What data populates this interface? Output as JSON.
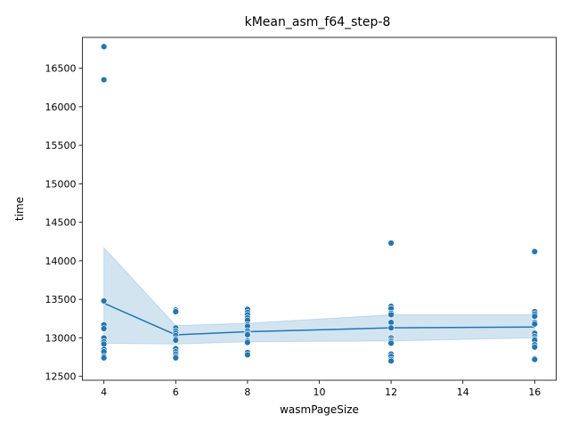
{
  "chart_data": {
    "type": "scatter",
    "title": "kMean_asm_f64_step-8",
    "xlabel": "wasmPageSize",
    "ylabel": "time",
    "xlim": [
      3.4,
      16.6
    ],
    "ylim": [
      12450,
      16900
    ],
    "xticks": [
      4,
      6,
      8,
      10,
      12,
      14,
      16
    ],
    "yticks": [
      12500,
      13000,
      13500,
      14000,
      14500,
      15000,
      15500,
      16000,
      16500
    ],
    "grid": false,
    "colors": {
      "points": "#1f77b4",
      "line": "#1f77b4",
      "band": "#1f77b4"
    },
    "points": [
      {
        "x": 4,
        "y": 16780
      },
      {
        "x": 4,
        "y": 16350
      },
      {
        "x": 4,
        "y": 13480
      },
      {
        "x": 4,
        "y": 13170
      },
      {
        "x": 4,
        "y": 13120
      },
      {
        "x": 4,
        "y": 13000
      },
      {
        "x": 4,
        "y": 12950
      },
      {
        "x": 4,
        "y": 12920
      },
      {
        "x": 4,
        "y": 12850
      },
      {
        "x": 4,
        "y": 12820
      },
      {
        "x": 4,
        "y": 12760
      },
      {
        "x": 4,
        "y": 12740
      },
      {
        "x": 6,
        "y": 13360
      },
      {
        "x": 6,
        "y": 13340
      },
      {
        "x": 6,
        "y": 13130
      },
      {
        "x": 6,
        "y": 13090
      },
      {
        "x": 6,
        "y": 13060
      },
      {
        "x": 6,
        "y": 13030
      },
      {
        "x": 6,
        "y": 12990
      },
      {
        "x": 6,
        "y": 12970
      },
      {
        "x": 6,
        "y": 12860
      },
      {
        "x": 6,
        "y": 12820
      },
      {
        "x": 6,
        "y": 12790
      },
      {
        "x": 6,
        "y": 12760
      },
      {
        "x": 6,
        "y": 12740
      },
      {
        "x": 8,
        "y": 13370
      },
      {
        "x": 8,
        "y": 13330
      },
      {
        "x": 8,
        "y": 13300
      },
      {
        "x": 8,
        "y": 13260
      },
      {
        "x": 8,
        "y": 13230
      },
      {
        "x": 8,
        "y": 13170
      },
      {
        "x": 8,
        "y": 13150
      },
      {
        "x": 8,
        "y": 13090
      },
      {
        "x": 8,
        "y": 13060
      },
      {
        "x": 8,
        "y": 13040
      },
      {
        "x": 8,
        "y": 12960
      },
      {
        "x": 8,
        "y": 12940
      },
      {
        "x": 8,
        "y": 12810
      },
      {
        "x": 8,
        "y": 12780
      },
      {
        "x": 12,
        "y": 14230
      },
      {
        "x": 12,
        "y": 13410
      },
      {
        "x": 12,
        "y": 13380
      },
      {
        "x": 12,
        "y": 13320
      },
      {
        "x": 12,
        "y": 13300
      },
      {
        "x": 12,
        "y": 13200
      },
      {
        "x": 12,
        "y": 13130
      },
      {
        "x": 12,
        "y": 13000
      },
      {
        "x": 12,
        "y": 12970
      },
      {
        "x": 12,
        "y": 12950
      },
      {
        "x": 12,
        "y": 12930
      },
      {
        "x": 12,
        "y": 12790
      },
      {
        "x": 12,
        "y": 12760
      },
      {
        "x": 12,
        "y": 12720
      },
      {
        "x": 12,
        "y": 12700
      },
      {
        "x": 16,
        "y": 14120
      },
      {
        "x": 16,
        "y": 13340
      },
      {
        "x": 16,
        "y": 13310
      },
      {
        "x": 16,
        "y": 13280
      },
      {
        "x": 16,
        "y": 13200
      },
      {
        "x": 16,
        "y": 13180
      },
      {
        "x": 16,
        "y": 13060
      },
      {
        "x": 16,
        "y": 13020
      },
      {
        "x": 16,
        "y": 12990
      },
      {
        "x": 16,
        "y": 12970
      },
      {
        "x": 16,
        "y": 12910
      },
      {
        "x": 16,
        "y": 12880
      },
      {
        "x": 16,
        "y": 12730
      },
      {
        "x": 16,
        "y": 12720
      }
    ],
    "mean_line": {
      "x": [
        4,
        6,
        8,
        12,
        16
      ],
      "y": [
        13450,
        13040,
        13080,
        13130,
        13140
      ]
    },
    "confidence_band": {
      "x": [
        4,
        6,
        8,
        12,
        16
      ],
      "lower": [
        12930,
        12920,
        12950,
        12960,
        13000
      ],
      "upper": [
        14170,
        13160,
        13190,
        13300,
        13300
      ]
    }
  }
}
